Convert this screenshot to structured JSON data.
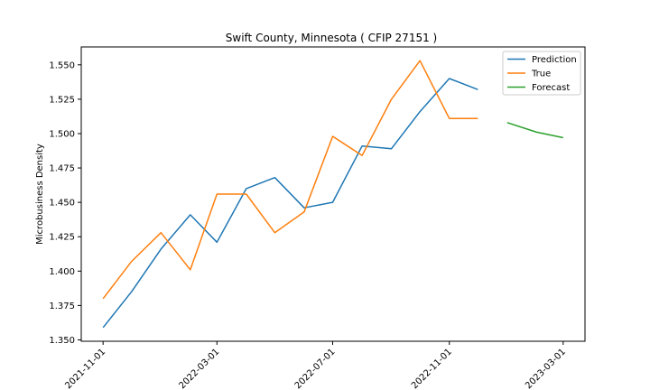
{
  "chart_data": {
    "type": "line",
    "title": "Swift County, Minnesota ( CFIP 27151 )",
    "xlabel": "",
    "ylabel": "Microbusiness Density",
    "x_ticks": [
      "2021-11-01",
      "2022-03-01",
      "2022-07-01",
      "2022-11-01",
      "2023-03-01"
    ],
    "y_ticks": [
      "1.350",
      "1.375",
      "1.400",
      "1.425",
      "1.450",
      "1.475",
      "1.500",
      "1.525",
      "1.550"
    ],
    "ylim": [
      1.349,
      1.563
    ],
    "xlim": [
      "2021-10-09",
      "2023-03-24"
    ],
    "legend_position": "top-right",
    "grid": false,
    "series": [
      {
        "name": "Prediction",
        "color": "#1f77b4",
        "points": [
          [
            "2021-11-01",
            1.359
          ],
          [
            "2021-12-01",
            1.385
          ],
          [
            "2022-01-01",
            1.416
          ],
          [
            "2022-02-01",
            1.441
          ],
          [
            "2022-03-01",
            1.421
          ],
          [
            "2022-04-01",
            1.46
          ],
          [
            "2022-05-01",
            1.468
          ],
          [
            "2022-06-01",
            1.446
          ],
          [
            "2022-07-01",
            1.45
          ],
          [
            "2022-08-01",
            1.491
          ],
          [
            "2022-09-01",
            1.489
          ],
          [
            "2022-10-01",
            1.516
          ],
          [
            "2022-11-01",
            1.54
          ],
          [
            "2022-12-01",
            1.532
          ]
        ]
      },
      {
        "name": "True",
        "color": "#ff7f0e",
        "points": [
          [
            "2021-11-01",
            1.38
          ],
          [
            "2021-12-01",
            1.407
          ],
          [
            "2022-01-01",
            1.428
          ],
          [
            "2022-02-01",
            1.401
          ],
          [
            "2022-03-01",
            1.456
          ],
          [
            "2022-04-01",
            1.456
          ],
          [
            "2022-05-01",
            1.428
          ],
          [
            "2022-06-01",
            1.443
          ],
          [
            "2022-07-01",
            1.498
          ],
          [
            "2022-08-01",
            1.484
          ],
          [
            "2022-09-01",
            1.525
          ],
          [
            "2022-10-01",
            1.553
          ],
          [
            "2022-11-01",
            1.511
          ],
          [
            "2022-12-01",
            1.511
          ]
        ]
      },
      {
        "name": "Forecast",
        "color": "#2ca02c",
        "points": [
          [
            "2023-01-01",
            1.508
          ],
          [
            "2023-02-01",
            1.501
          ],
          [
            "2023-03-01",
            1.497
          ]
        ]
      }
    ]
  }
}
